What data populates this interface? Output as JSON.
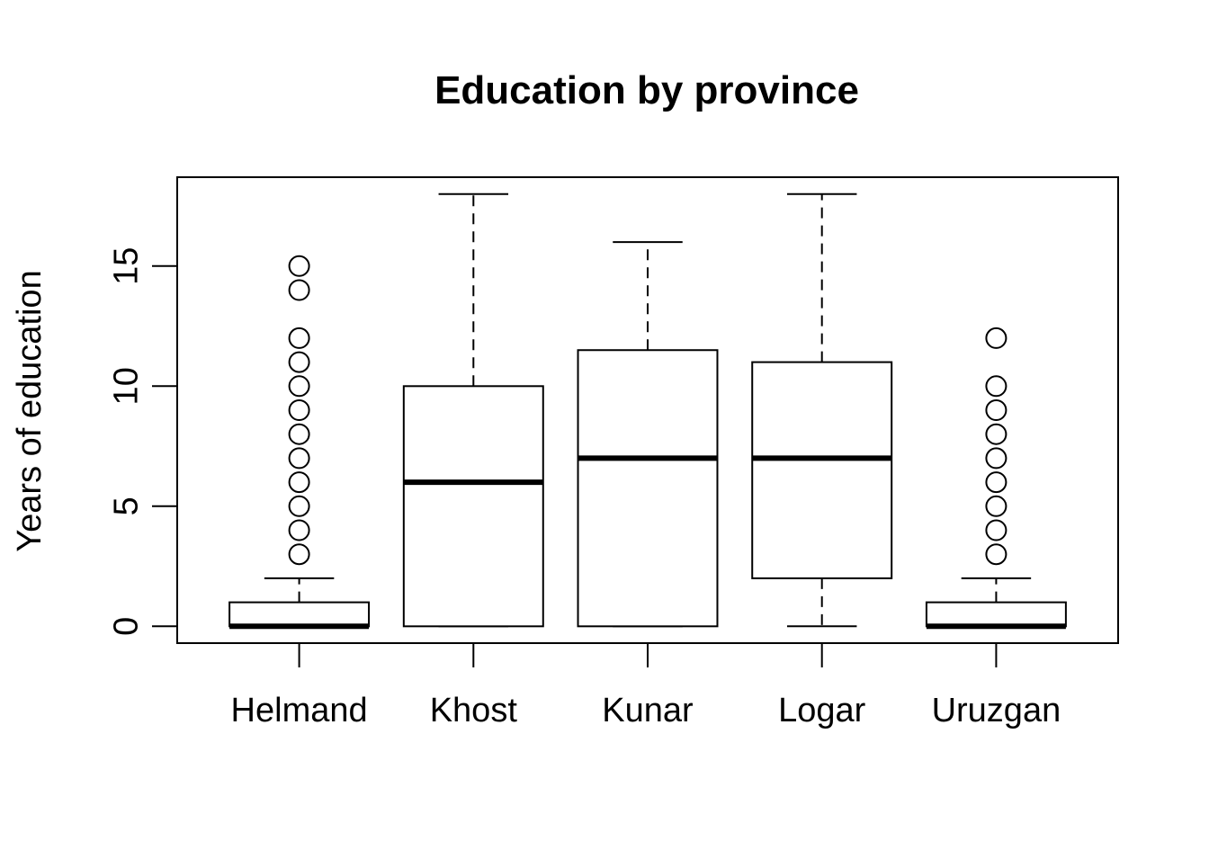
{
  "chart_data": {
    "type": "box",
    "title": "Education by province",
    "xlabel": "",
    "ylabel": "Years of education",
    "ylim": [
      -0.7,
      18.7
    ],
    "y_ticks": [
      0,
      5,
      10,
      15
    ],
    "grid": false,
    "legend": "none",
    "categories": [
      "Helmand",
      "Khost",
      "Kunar",
      "Logar",
      "Uruzgan"
    ],
    "boxes": [
      {
        "category": "Helmand",
        "whisker_low": 0,
        "q1": 0,
        "median": 0,
        "q3": 1,
        "whisker_high": 2,
        "outliers": [
          3,
          4,
          5,
          6,
          7,
          8,
          9,
          10,
          11,
          12,
          14,
          15
        ]
      },
      {
        "category": "Khost",
        "whisker_low": 0,
        "q1": 0,
        "median": 6,
        "q3": 10,
        "whisker_high": 18,
        "outliers": []
      },
      {
        "category": "Kunar",
        "whisker_low": 0,
        "q1": 0,
        "median": 7,
        "q3": 11.5,
        "whisker_high": 16,
        "outliers": []
      },
      {
        "category": "Logar",
        "whisker_low": 0,
        "q1": 2,
        "median": 7,
        "q3": 11,
        "whisker_high": 18,
        "outliers": []
      },
      {
        "category": "Uruzgan",
        "whisker_low": 0,
        "q1": 0,
        "median": 0,
        "q3": 1,
        "whisker_high": 2,
        "outliers": [
          3,
          4,
          5,
          6,
          7,
          8,
          9,
          10,
          12
        ]
      }
    ],
    "colors": {
      "stroke": "#000000",
      "fill": "#ffffff"
    }
  }
}
